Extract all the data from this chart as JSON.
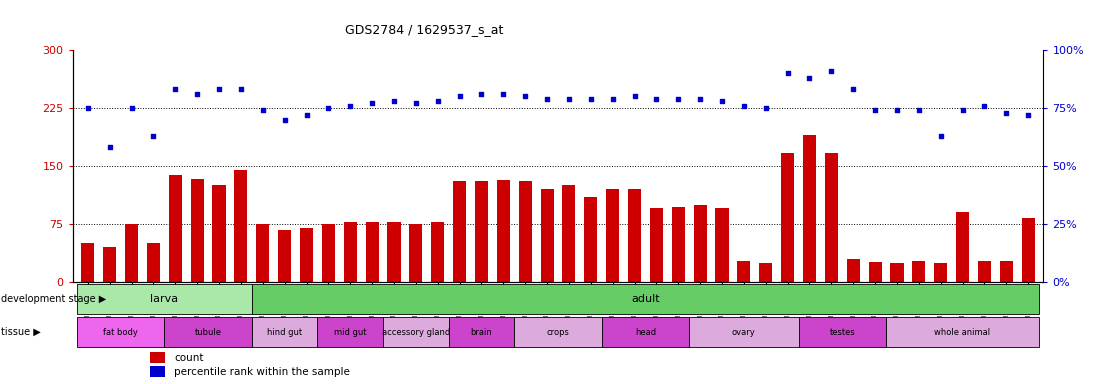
{
  "title": "GDS2784 / 1629537_s_at",
  "samples": [
    "GSM188092",
    "GSM188093",
    "GSM188094",
    "GSM188095",
    "GSM188100",
    "GSM188101",
    "GSM188102",
    "GSM188103",
    "GSM188072",
    "GSM188073",
    "GSM188074",
    "GSM188075",
    "GSM188076",
    "GSM188077",
    "GSM188078",
    "GSM188079",
    "GSM188080",
    "GSM188081",
    "GSM188082",
    "GSM188083",
    "GSM188084",
    "GSM188085",
    "GSM188086",
    "GSM188087",
    "GSM188088",
    "GSM188089",
    "GSM188090",
    "GSM188091",
    "GSM188096",
    "GSM188097",
    "GSM188098",
    "GSM188099",
    "GSM188104",
    "GSM188105",
    "GSM188106",
    "GSM188107",
    "GSM188108",
    "GSM188109",
    "GSM188110",
    "GSM188111",
    "GSM188112",
    "GSM188113",
    "GSM188114",
    "GSM188115"
  ],
  "counts": [
    50,
    45,
    75,
    50,
    138,
    133,
    125,
    145,
    75,
    67,
    70,
    75,
    78,
    78,
    78,
    75,
    78,
    130,
    130,
    132,
    130,
    120,
    125,
    110,
    120,
    120,
    95,
    97,
    100,
    95,
    27,
    25,
    167,
    190,
    167,
    30,
    26,
    25,
    27,
    25,
    90,
    27,
    27,
    83
  ],
  "percentile": [
    75,
    58,
    75,
    63,
    83,
    81,
    83,
    83,
    74,
    70,
    72,
    75,
    76,
    77,
    78,
    77,
    78,
    80,
    81,
    81,
    80,
    79,
    79,
    79,
    79,
    80,
    79,
    79,
    79,
    78,
    76,
    75,
    90,
    88,
    91,
    83,
    74,
    74,
    74,
    63,
    74,
    76,
    73,
    72
  ],
  "dev_stage_groups": [
    {
      "label": "larva",
      "start": 0,
      "end": 8,
      "color": "#aae8aa"
    },
    {
      "label": "adult",
      "start": 8,
      "end": 44,
      "color": "#66cc66"
    }
  ],
  "tissue_groups": [
    {
      "label": "fat body",
      "start": 0,
      "end": 4,
      "color": "#ee66ee"
    },
    {
      "label": "tubule",
      "start": 4,
      "end": 8,
      "color": "#cc44cc"
    },
    {
      "label": "hind gut",
      "start": 8,
      "end": 11,
      "color": "#ddaadd"
    },
    {
      "label": "mid gut",
      "start": 11,
      "end": 14,
      "color": "#cc44cc"
    },
    {
      "label": "accessory gland",
      "start": 14,
      "end": 17,
      "color": "#ddaadd"
    },
    {
      "label": "brain",
      "start": 17,
      "end": 20,
      "color": "#cc44cc"
    },
    {
      "label": "crops",
      "start": 20,
      "end": 24,
      "color": "#ddaadd"
    },
    {
      "label": "head",
      "start": 24,
      "end": 28,
      "color": "#cc44cc"
    },
    {
      "label": "ovary",
      "start": 28,
      "end": 33,
      "color": "#ddaadd"
    },
    {
      "label": "testes",
      "start": 33,
      "end": 37,
      "color": "#cc44cc"
    },
    {
      "label": "whole animal",
      "start": 37,
      "end": 44,
      "color": "#ddaadd"
    }
  ],
  "bar_color": "#cc0000",
  "dot_color": "#0000cc",
  "left_ylim": [
    0,
    300
  ],
  "left_yticks": [
    0,
    75,
    150,
    225,
    300
  ],
  "right_ylim": [
    0,
    100
  ],
  "right_yticks": [
    0,
    25,
    50,
    75,
    100
  ],
  "left_ycolor": "#cc0000",
  "right_ycolor": "#0000cc"
}
